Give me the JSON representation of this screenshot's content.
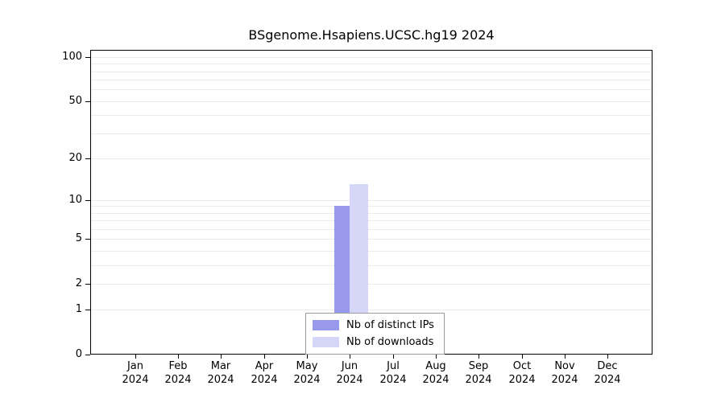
{
  "chart_data": {
    "type": "bar",
    "title": "BSgenome.Hsapiens.UCSC.hg19 2024",
    "year": "2024",
    "categories": [
      "Jan",
      "Feb",
      "Mar",
      "Apr",
      "May",
      "Jun",
      "Jul",
      "Aug",
      "Sep",
      "Oct",
      "Nov",
      "Dec"
    ],
    "series": [
      {
        "name": "Nb of distinct IPs",
        "color": "#9999ec",
        "values": [
          0,
          0,
          0,
          0,
          0,
          9,
          0,
          0,
          0,
          0,
          0,
          0
        ]
      },
      {
        "name": "Nb of downloads",
        "color": "#d6d6f9",
        "values": [
          0,
          0,
          0,
          0,
          0,
          13,
          0,
          0,
          0,
          0,
          0,
          0
        ]
      }
    ],
    "y_scale": "log10(1+x)",
    "y_ticks": [
      0,
      1,
      2,
      5,
      10,
      20,
      50,
      100
    ],
    "gridline_values": [
      1,
      2,
      3,
      4,
      5,
      6,
      7,
      8,
      9,
      10,
      20,
      30,
      40,
      50,
      60,
      70,
      80,
      90,
      100
    ],
    "ylim": [
      0,
      100
    ],
    "xlabel": "",
    "ylabel": "",
    "legend_position": "bottom-center",
    "grid": "horizontal"
  }
}
